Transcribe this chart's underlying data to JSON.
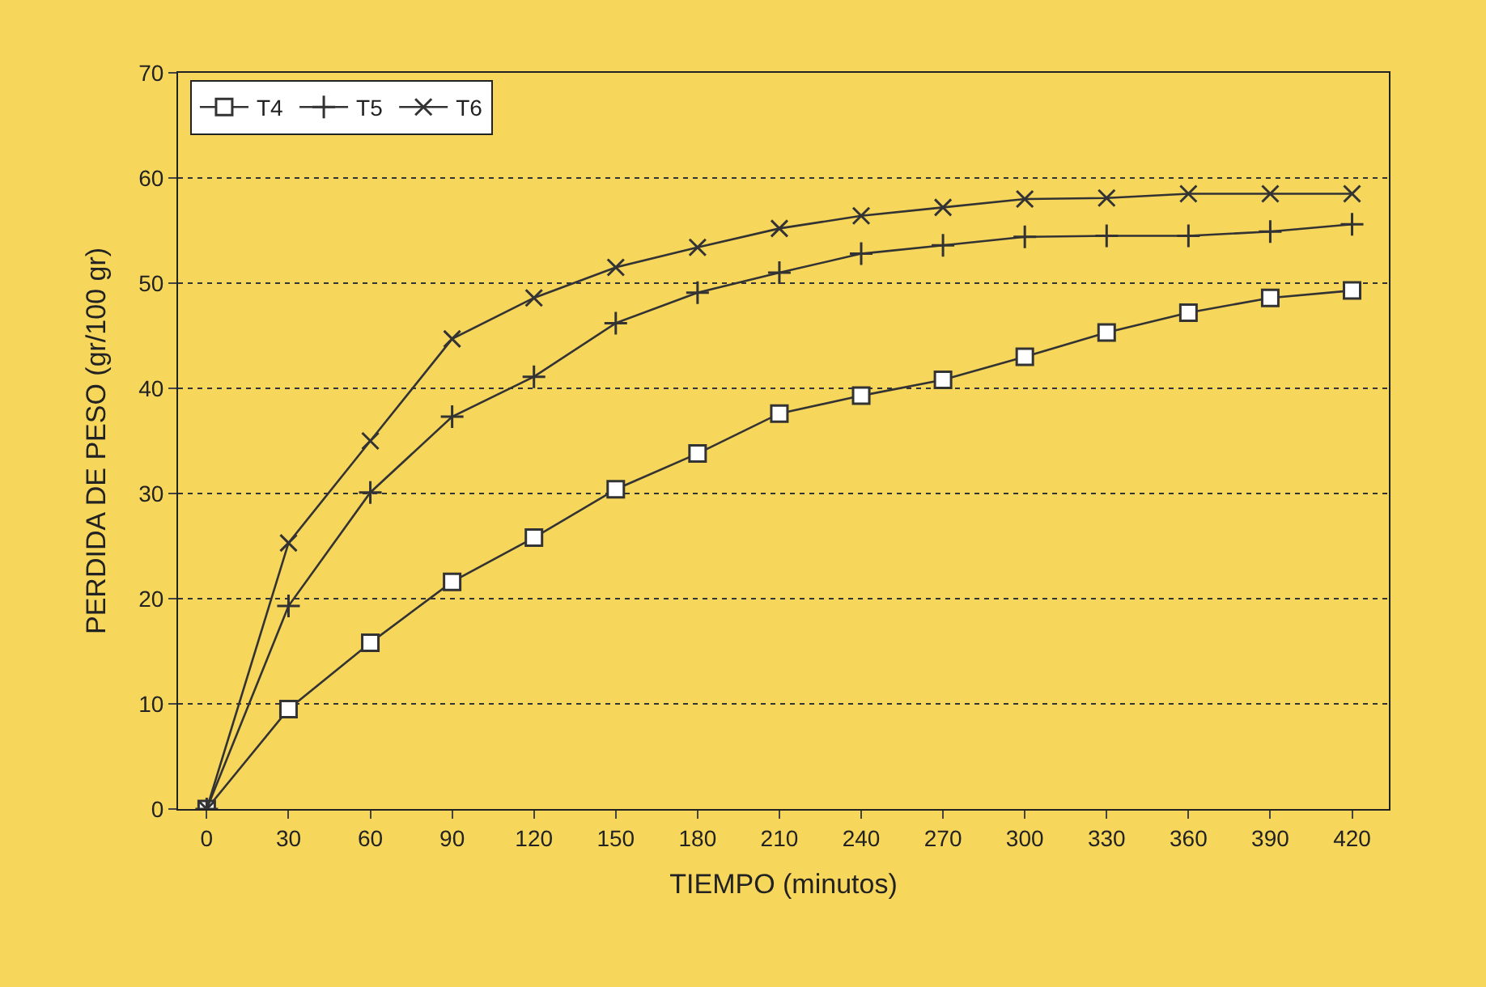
{
  "chart_data": {
    "type": "line",
    "xlabel": "TIEMPO (minutos)",
    "ylabel": "PERDIDA DE PESO (gr/100 gr)",
    "categories": [
      "0",
      "30",
      "60",
      "90",
      "120",
      "150",
      "180",
      "210",
      "240",
      "270",
      "300",
      "330",
      "360",
      "390",
      "420"
    ],
    "series": [
      {
        "name": "T4",
        "color": "#333333",
        "marker": "square",
        "values": [
          0,
          9.5,
          15.8,
          21.6,
          25.8,
          30.4,
          33.8,
          37.6,
          39.3,
          40.8,
          43.0,
          45.3,
          47.2,
          48.6,
          49.3
        ]
      },
      {
        "name": "T5",
        "color": "#333333",
        "marker": "cross",
        "values": [
          0,
          19.3,
          30.1,
          37.3,
          41.1,
          46.2,
          49.1,
          51.0,
          52.8,
          53.6,
          54.4,
          54.5,
          54.5,
          54.9,
          55.6
        ]
      },
      {
        "name": "T6",
        "color": "#333333",
        "marker": "x",
        "values": [
          0,
          25.3,
          35.0,
          44.7,
          48.6,
          51.5,
          53.4,
          55.2,
          56.4,
          57.2,
          58.0,
          58.1,
          58.5,
          58.5,
          58.5
        ]
      }
    ],
    "ylim": [
      0,
      70
    ],
    "yticks": [
      0,
      10,
      20,
      30,
      40,
      50,
      60,
      70
    ],
    "grid": "y",
    "legend": "top left",
    "line_style": "solid"
  }
}
